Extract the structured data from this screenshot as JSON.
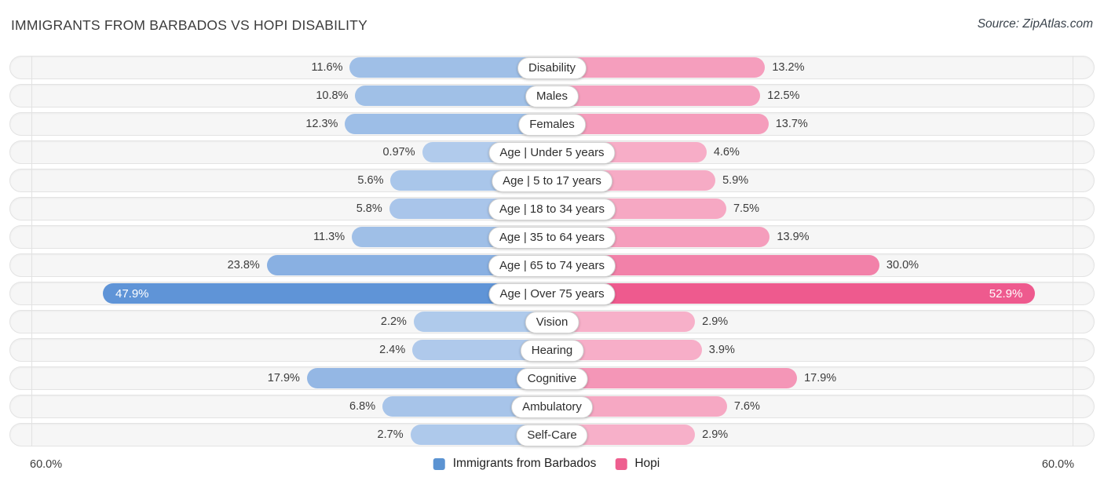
{
  "header": {
    "title": "IMMIGRANTS FROM BARBADOS VS HOPI DISABILITY",
    "source": "Source: ZipAtlas.com"
  },
  "chart_data": {
    "type": "bar",
    "variant": "diverging-horizontal-butterfly",
    "title": "IMMIGRANTS FROM BARBADOS VS HOPI DISABILITY",
    "categories": [
      "Disability",
      "Males",
      "Females",
      "Age | Under 5 years",
      "Age | 5 to 17 years",
      "Age | 18 to 34 years",
      "Age | 35 to 64 years",
      "Age | 65 to 74 years",
      "Age | Over 75 years",
      "Vision",
      "Hearing",
      "Cognitive",
      "Ambulatory",
      "Self-Care"
    ],
    "series": [
      {
        "name": "Immigrants from Barbados",
        "side": "left",
        "base_color": "#4a86d2",
        "values": [
          11.6,
          10.8,
          12.3,
          0.97,
          5.6,
          5.8,
          11.3,
          23.8,
          47.9,
          2.2,
          2.4,
          17.9,
          6.8,
          2.7
        ]
      },
      {
        "name": "Hopi",
        "side": "right",
        "base_color": "#ed4e86",
        "values": [
          13.2,
          12.5,
          13.7,
          4.6,
          5.9,
          7.5,
          13.9,
          30.0,
          52.9,
          2.9,
          3.9,
          17.9,
          7.6,
          2.9
        ]
      }
    ],
    "rows": [
      {
        "category": "Disability",
        "left_value": 11.6,
        "left_display": "11.6%",
        "right_value": 13.2,
        "right_display": "13.2%"
      },
      {
        "category": "Males",
        "left_value": 10.8,
        "left_display": "10.8%",
        "right_value": 12.5,
        "right_display": "12.5%"
      },
      {
        "category": "Females",
        "left_value": 12.3,
        "left_display": "12.3%",
        "right_value": 13.7,
        "right_display": "13.7%"
      },
      {
        "category": "Age | Under 5 years",
        "left_value": 0.97,
        "left_display": "0.97%",
        "right_value": 4.6,
        "right_display": "4.6%"
      },
      {
        "category": "Age | 5 to 17 years",
        "left_value": 5.6,
        "left_display": "5.6%",
        "right_value": 5.9,
        "right_display": "5.9%"
      },
      {
        "category": "Age | 18 to 34 years",
        "left_value": 5.8,
        "left_display": "5.8%",
        "right_value": 7.5,
        "right_display": "7.5%"
      },
      {
        "category": "Age | 35 to 64 years",
        "left_value": 11.3,
        "left_display": "11.3%",
        "right_value": 13.9,
        "right_display": "13.9%"
      },
      {
        "category": "Age | 65 to 74 years",
        "left_value": 23.8,
        "left_display": "23.8%",
        "right_value": 30.0,
        "right_display": "30.0%"
      },
      {
        "category": "Age | Over 75 years",
        "left_value": 47.9,
        "left_display": "47.9%",
        "right_value": 52.9,
        "right_display": "52.9%"
      },
      {
        "category": "Vision",
        "left_value": 2.2,
        "left_display": "2.2%",
        "right_value": 2.9,
        "right_display": "2.9%"
      },
      {
        "category": "Hearing",
        "left_value": 2.4,
        "left_display": "2.4%",
        "right_value": 3.9,
        "right_display": "3.9%"
      },
      {
        "category": "Cognitive",
        "left_value": 17.9,
        "left_display": "17.9%",
        "right_value": 17.9,
        "right_display": "17.9%"
      },
      {
        "category": "Ambulatory",
        "left_value": 6.8,
        "left_display": "6.8%",
        "right_value": 7.6,
        "right_display": "7.6%"
      },
      {
        "category": "Self-Care",
        "left_value": 2.7,
        "left_display": "2.7%",
        "right_value": 2.9,
        "right_display": "2.9%"
      }
    ],
    "axis": {
      "left_max_label": "60.0%",
      "right_max_label": "60.0%",
      "max_percent": 60,
      "grid": "edge-ticks-only"
    },
    "legend": [
      {
        "label": "Immigrants from Barbados",
        "color": "#5b93d2"
      },
      {
        "label": "Hopi",
        "color": "#ee5f8f"
      }
    ],
    "legend_position": "bottom-center"
  }
}
